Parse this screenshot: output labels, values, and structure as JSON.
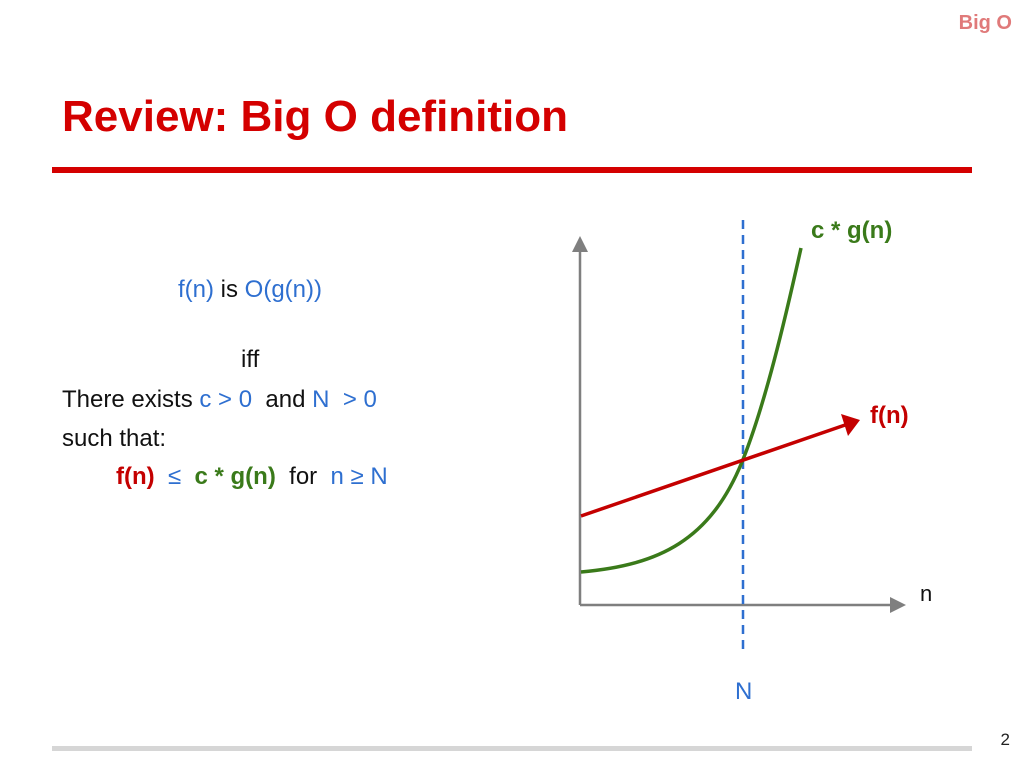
{
  "header_tag": "Big O",
  "title": "Review: Big O definition",
  "page_number": "2",
  "definition": {
    "line1": {
      "fn": "f(n)",
      "is": " is ",
      "ogn": "O(g(n))"
    },
    "iff": "iff",
    "line3": {
      "there_exists": "There exists ",
      "c_gt": "c > 0",
      "and": "  and ",
      "N": "N",
      "gt0": "  > 0"
    },
    "such_that": "such that:",
    "line5": {
      "fn": "f(n)",
      "leq": "  ≤  ",
      "cgn": "c * g(n)",
      "for": "  for  ",
      "cond": "n ≥ N"
    }
  },
  "diagram": {
    "curve_label": "c * g(n)",
    "line_label": "f(n)",
    "x_axis_label": "n",
    "threshold_label": "N",
    "colors": {
      "axes": "#7f7f7f",
      "curve": "#3a7a1a",
      "line": "#c40000",
      "threshold": "#2e6fd0"
    }
  }
}
